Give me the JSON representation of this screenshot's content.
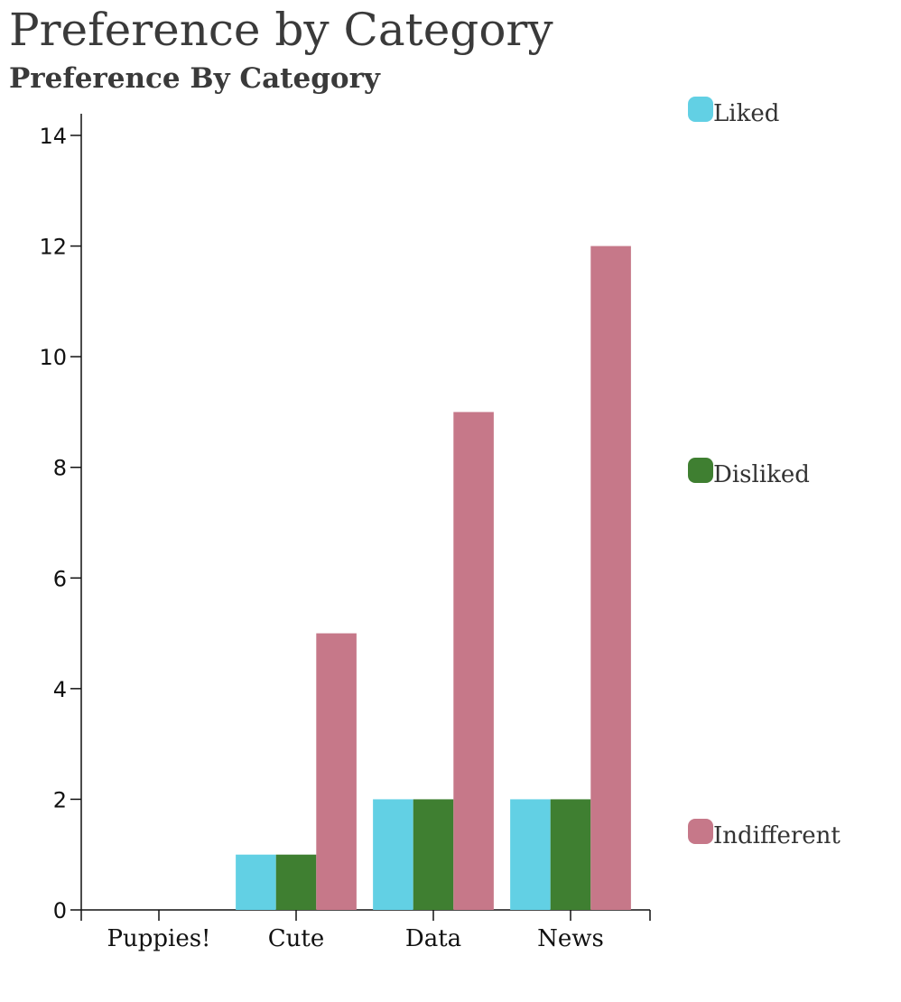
{
  "chart_data": {
    "type": "bar",
    "title": "Preference by Category",
    "subtitle": "Preference By Category",
    "categories": [
      "Puppies!",
      "Cute",
      "Data",
      "News"
    ],
    "series": [
      {
        "name": "Liked",
        "color": "#62d0e4",
        "values": [
          0,
          1,
          2,
          2
        ]
      },
      {
        "name": "Disliked",
        "color": "#3f7f31",
        "values": [
          0,
          1,
          2,
          2
        ]
      },
      {
        "name": "Indifferent",
        "color": "#c67889",
        "values": [
          0,
          5,
          9,
          12
        ]
      }
    ],
    "ylim": [
      0,
      14
    ],
    "yticks": [
      0,
      2,
      4,
      6,
      8,
      10,
      12,
      14
    ],
    "grid": false,
    "legend_position": "right"
  }
}
